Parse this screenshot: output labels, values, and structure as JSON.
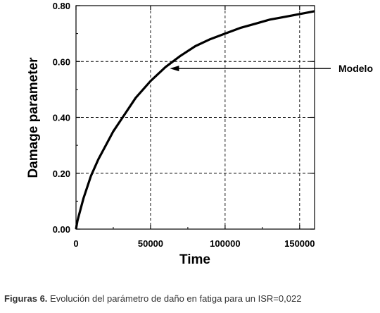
{
  "caption": {
    "lead": "Figuras 6.",
    "text": " Evolución del parámetro de daño en fatiga para un ISR=0,022"
  },
  "chart_data": {
    "type": "line",
    "title": "",
    "xlabel": "Time",
    "ylabel": "Damage parameter",
    "xlim": [
      0,
      160000
    ],
    "ylim": [
      0,
      0.8
    ],
    "xticks": [
      0,
      50000,
      100000,
      150000
    ],
    "xtick_labels": [
      "0",
      "50000",
      "100000",
      "150000"
    ],
    "yticks": [
      0,
      0.2,
      0.4,
      0.6,
      0.8
    ],
    "ytick_labels": [
      "0.00",
      "0.20",
      "0.40",
      "0.60",
      "0.80"
    ],
    "grid": true,
    "legend": "none",
    "series": [
      {
        "name": "Modelo",
        "x": [
          0,
          1000,
          2000,
          5000,
          10000,
          15000,
          20000,
          25000,
          30000,
          40000,
          50000,
          60000,
          70000,
          80000,
          90000,
          100000,
          110000,
          120000,
          130000,
          140000,
          150000,
          160000
        ],
        "y": [
          0.0,
          0.03,
          0.05,
          0.11,
          0.19,
          0.25,
          0.3,
          0.35,
          0.39,
          0.47,
          0.53,
          0.58,
          0.62,
          0.655,
          0.68,
          0.7,
          0.72,
          0.735,
          0.75,
          0.76,
          0.77,
          0.78
        ]
      }
    ],
    "annotations": [
      {
        "text": "Modelo",
        "arrow_to_x": 62000,
        "arrow_to_y": 0.575
      }
    ],
    "colors": {
      "line": "#000000",
      "grid": "#000000",
      "axes": "#000000"
    }
  }
}
